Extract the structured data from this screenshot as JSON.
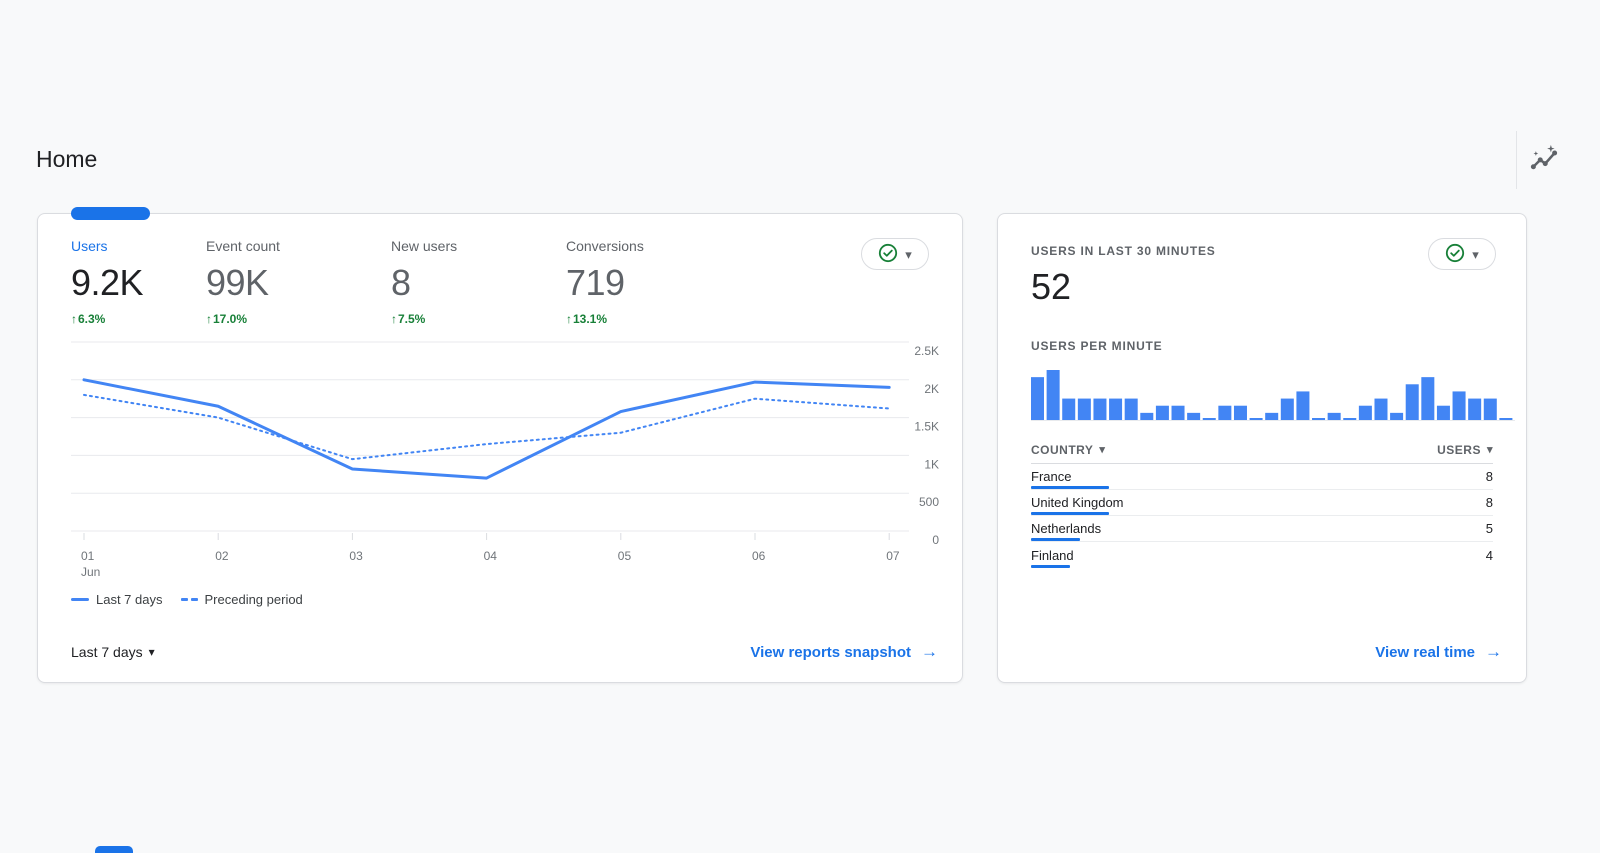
{
  "header": {
    "title": "Home"
  },
  "icons": {
    "arrow_up": "↑",
    "arrow_right": "→",
    "caret_down": "▾"
  },
  "colors": {
    "accent_blue": "#1a73e8",
    "chart_blue": "#4285f4",
    "positive_green": "#188038",
    "text_primary": "#202124",
    "text_secondary": "#5f6368",
    "border": "#dadce0",
    "gridline": "#e8eaed",
    "page_bg": "#f8f9fa",
    "card_bg": "#ffffff"
  },
  "left_card": {
    "metrics": [
      {
        "label": "Users",
        "value": "9.2K",
        "change": "6.3%",
        "selected": true
      },
      {
        "label": "Event count",
        "value": "99K",
        "change": "17.0%",
        "selected": false
      },
      {
        "label": "New users",
        "value": "8",
        "change": "7.5%",
        "selected": false
      },
      {
        "label": "Conversions",
        "value": "719",
        "change": "13.1%",
        "selected": false
      }
    ],
    "legend": [
      {
        "label": "Last 7 days",
        "style": "solid"
      },
      {
        "label": "Preceding period",
        "style": "dashed"
      }
    ],
    "date_range": "Last 7 days",
    "footer_link": "View reports snapshot"
  },
  "right_card": {
    "title": "USERS IN LAST 30 MINUTES",
    "value": "52",
    "subtitle": "USERS PER MINUTE",
    "table": {
      "col_country": "COUNTRY",
      "col_users": "USERS",
      "rows": [
        {
          "country": "France",
          "users": 8
        },
        {
          "country": "United Kingdom",
          "users": 8
        },
        {
          "country": "Netherlands",
          "users": 5
        },
        {
          "country": "Finland",
          "users": 4
        }
      ]
    },
    "footer_link": "View real time"
  },
  "chart_data": [
    {
      "type": "line",
      "title": "Users: last 7 days vs preceding period",
      "x_labels": [
        "01",
        "02",
        "03",
        "04",
        "05",
        "06",
        "07"
      ],
      "x_sublabel": "Jun",
      "series": [
        {
          "name": "Last 7 days",
          "style": "solid",
          "values": [
            2000,
            1650,
            820,
            700,
            1580,
            1970,
            1900
          ]
        },
        {
          "name": "Preceding period",
          "style": "dashed",
          "values": [
            1800,
            1500,
            950,
            1150,
            1300,
            1750,
            1620
          ]
        }
      ],
      "ylim": [
        0,
        2500
      ],
      "yticks": [
        {
          "v": 2500,
          "label": "2.5K"
        },
        {
          "v": 2000,
          "label": "2K"
        },
        {
          "v": 1500,
          "label": "1.5K"
        },
        {
          "v": 1000,
          "label": "1K"
        },
        {
          "v": 500,
          "label": "500"
        },
        {
          "v": 0,
          "label": "0"
        }
      ],
      "grid": true,
      "legend_position": "bottom-left"
    },
    {
      "type": "bar",
      "title": "USERS PER MINUTE",
      "values": [
        6,
        7,
        3,
        3,
        3,
        3,
        3,
        1,
        2,
        2,
        1,
        0,
        2,
        2,
        0,
        1,
        3,
        4,
        0,
        1,
        0,
        2,
        3,
        1,
        5,
        6,
        2,
        4,
        3,
        3,
        0
      ],
      "ymax": 7,
      "ylim": [
        0,
        7
      ]
    }
  ]
}
